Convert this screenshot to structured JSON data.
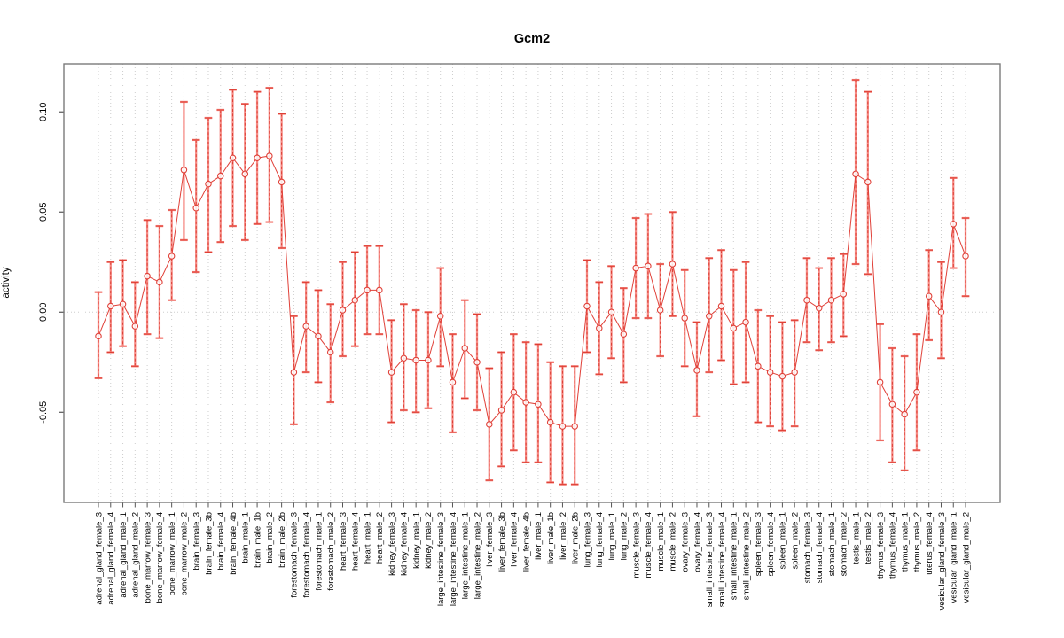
{
  "title": "Gcm2",
  "colors": {
    "point": "#e04038",
    "series_line": "#e04038",
    "errorbar_solid": "#f47068",
    "errorbar_dashed": "#d93025",
    "grid": "#cdcdcd",
    "frame": "#7a7a7a",
    "tick": "#555555",
    "text": "#000000",
    "background": "#ffffff"
  },
  "chart_data": {
    "type": "scatter",
    "title": "Gcm2",
    "xlabel": "",
    "ylabel": "activity",
    "ylim": [
      -0.095,
      0.124
    ],
    "yticks": [
      0.1,
      0.05,
      0.0,
      -0.05
    ],
    "ytick_labels": [
      "0.10",
      "0.05",
      "0.00",
      "-0.05"
    ],
    "grid": "vertical dotted gridline per category; dotted horizontal line at y=0",
    "legend": "none",
    "marker": "open-circle",
    "error_bars": true,
    "points": [
      {
        "label": "adrenal_gland_female_3",
        "value": -0.012,
        "lo": -0.033,
        "hi": 0.01
      },
      {
        "label": "adrenal_gland_female_4",
        "value": 0.003,
        "lo": -0.02,
        "hi": 0.025
      },
      {
        "label": "adrenal_gland_male_1",
        "value": 0.004,
        "lo": -0.017,
        "hi": 0.026
      },
      {
        "label": "adrenal_gland_male_2",
        "value": -0.007,
        "lo": -0.027,
        "hi": 0.015
      },
      {
        "label": "bone_marrow_female_3",
        "value": 0.018,
        "lo": -0.011,
        "hi": 0.046
      },
      {
        "label": "bone_marrow_female_4",
        "value": 0.015,
        "lo": -0.013,
        "hi": 0.043
      },
      {
        "label": "bone_marrow_male_1",
        "value": 0.028,
        "lo": 0.006,
        "hi": 0.051
      },
      {
        "label": "bone_marrow_male_2",
        "value": 0.071,
        "lo": 0.036,
        "hi": 0.105
      },
      {
        "label": "brain_female_3",
        "value": 0.052,
        "lo": 0.02,
        "hi": 0.086
      },
      {
        "label": "brain_female_3b",
        "value": 0.064,
        "lo": 0.03,
        "hi": 0.097
      },
      {
        "label": "brain_female_4",
        "value": 0.068,
        "lo": 0.035,
        "hi": 0.101
      },
      {
        "label": "brain_female_4b",
        "value": 0.077,
        "lo": 0.043,
        "hi": 0.111
      },
      {
        "label": "brain_male_1",
        "value": 0.069,
        "lo": 0.036,
        "hi": 0.104
      },
      {
        "label": "brain_male_1b",
        "value": 0.077,
        "lo": 0.044,
        "hi": 0.11
      },
      {
        "label": "brain_male_2",
        "value": 0.078,
        "lo": 0.045,
        "hi": 0.112
      },
      {
        "label": "brain_male_2b",
        "value": 0.065,
        "lo": 0.032,
        "hi": 0.099
      },
      {
        "label": "forestomach_female_3",
        "value": -0.03,
        "lo": -0.056,
        "hi": -0.002
      },
      {
        "label": "forestomach_female_4",
        "value": -0.007,
        "lo": -0.03,
        "hi": 0.015
      },
      {
        "label": "forestomach_male_1",
        "value": -0.012,
        "lo": -0.035,
        "hi": 0.011
      },
      {
        "label": "forestomach_male_2",
        "value": -0.02,
        "lo": -0.045,
        "hi": 0.004
      },
      {
        "label": "heart_female_3",
        "value": 0.001,
        "lo": -0.022,
        "hi": 0.025
      },
      {
        "label": "heart_female_4",
        "value": 0.006,
        "lo": -0.017,
        "hi": 0.03
      },
      {
        "label": "heart_male_1",
        "value": 0.011,
        "lo": -0.011,
        "hi": 0.033
      },
      {
        "label": "heart_male_2",
        "value": 0.011,
        "lo": -0.011,
        "hi": 0.033
      },
      {
        "label": "kidney_female_3",
        "value": -0.03,
        "lo": -0.055,
        "hi": -0.004
      },
      {
        "label": "kidney_female_4",
        "value": -0.023,
        "lo": -0.049,
        "hi": 0.004
      },
      {
        "label": "kidney_male_1",
        "value": -0.024,
        "lo": -0.05,
        "hi": 0.001
      },
      {
        "label": "kidney_male_2",
        "value": -0.024,
        "lo": -0.048,
        "hi": 0.0
      },
      {
        "label": "large_intestine_female_3",
        "value": -0.002,
        "lo": -0.027,
        "hi": 0.022
      },
      {
        "label": "large_intestine_female_4",
        "value": -0.035,
        "lo": -0.06,
        "hi": -0.011
      },
      {
        "label": "large_intestine_male_1",
        "value": -0.018,
        "lo": -0.043,
        "hi": 0.006
      },
      {
        "label": "large_intestine_male_2",
        "value": -0.025,
        "lo": -0.049,
        "hi": -0.001
      },
      {
        "label": "liver_female_3",
        "value": -0.056,
        "lo": -0.084,
        "hi": -0.028
      },
      {
        "label": "liver_female_3b",
        "value": -0.049,
        "lo": -0.077,
        "hi": -0.02
      },
      {
        "label": "liver_female_4",
        "value": -0.04,
        "lo": -0.069,
        "hi": -0.011
      },
      {
        "label": "liver_female_4b",
        "value": -0.045,
        "lo": -0.075,
        "hi": -0.015
      },
      {
        "label": "liver_male_1",
        "value": -0.046,
        "lo": -0.075,
        "hi": -0.016
      },
      {
        "label": "liver_male_1b",
        "value": -0.055,
        "lo": -0.085,
        "hi": -0.025
      },
      {
        "label": "liver_male_2",
        "value": -0.057,
        "lo": -0.086,
        "hi": -0.027
      },
      {
        "label": "liver_male_2b",
        "value": -0.057,
        "lo": -0.086,
        "hi": -0.027
      },
      {
        "label": "lung_female_3",
        "value": 0.003,
        "lo": -0.02,
        "hi": 0.026
      },
      {
        "label": "lung_female_4",
        "value": -0.008,
        "lo": -0.031,
        "hi": 0.015
      },
      {
        "label": "lung_male_1",
        "value": 0.0,
        "lo": -0.023,
        "hi": 0.023
      },
      {
        "label": "lung_male_2",
        "value": -0.011,
        "lo": -0.035,
        "hi": 0.012
      },
      {
        "label": "muscle_female_3",
        "value": 0.022,
        "lo": -0.003,
        "hi": 0.047
      },
      {
        "label": "muscle_female_4",
        "value": 0.023,
        "lo": -0.003,
        "hi": 0.049
      },
      {
        "label": "muscle_male_1",
        "value": 0.001,
        "lo": -0.022,
        "hi": 0.024
      },
      {
        "label": "muscle_male_2",
        "value": 0.024,
        "lo": -0.002,
        "hi": 0.05
      },
      {
        "label": "ovary_female_3",
        "value": -0.003,
        "lo": -0.027,
        "hi": 0.021
      },
      {
        "label": "ovary_female_4",
        "value": -0.029,
        "lo": -0.052,
        "hi": -0.005
      },
      {
        "label": "small_intestine_female_3",
        "value": -0.002,
        "lo": -0.03,
        "hi": 0.027
      },
      {
        "label": "small_intestine_female_4",
        "value": 0.003,
        "lo": -0.024,
        "hi": 0.031
      },
      {
        "label": "small_intestine_male_1",
        "value": -0.008,
        "lo": -0.036,
        "hi": 0.021
      },
      {
        "label": "small_intestine_male_2",
        "value": -0.005,
        "lo": -0.035,
        "hi": 0.025
      },
      {
        "label": "spleen_female_3",
        "value": -0.027,
        "lo": -0.055,
        "hi": 0.001
      },
      {
        "label": "spleen_female_4",
        "value": -0.03,
        "lo": -0.057,
        "hi": -0.002
      },
      {
        "label": "spleen_male_1",
        "value": -0.032,
        "lo": -0.059,
        "hi": -0.005
      },
      {
        "label": "spleen_male_2",
        "value": -0.03,
        "lo": -0.057,
        "hi": -0.004
      },
      {
        "label": "stomach_female_3",
        "value": 0.006,
        "lo": -0.015,
        "hi": 0.027
      },
      {
        "label": "stomach_female_4",
        "value": 0.002,
        "lo": -0.019,
        "hi": 0.022
      },
      {
        "label": "stomach_male_1",
        "value": 0.006,
        "lo": -0.015,
        "hi": 0.027
      },
      {
        "label": "stomach_male_2",
        "value": 0.009,
        "lo": -0.012,
        "hi": 0.029
      },
      {
        "label": "testis_male_1",
        "value": 0.069,
        "lo": 0.024,
        "hi": 0.116
      },
      {
        "label": "testis_male_2",
        "value": 0.065,
        "lo": 0.019,
        "hi": 0.11
      },
      {
        "label": "thymus_female_3",
        "value": -0.035,
        "lo": -0.064,
        "hi": -0.006
      },
      {
        "label": "thymus_female_4",
        "value": -0.046,
        "lo": -0.075,
        "hi": -0.018
      },
      {
        "label": "thymus_male_1",
        "value": -0.051,
        "lo": -0.079,
        "hi": -0.022
      },
      {
        "label": "thymus_male_2",
        "value": -0.04,
        "lo": -0.069,
        "hi": -0.011
      },
      {
        "label": "uterus_female_4",
        "value": 0.008,
        "lo": -0.014,
        "hi": 0.031
      },
      {
        "label": "vesicular_gland_female_3",
        "value": 0.0,
        "lo": -0.023,
        "hi": 0.025
      },
      {
        "label": "vesicular_gland_male_1",
        "value": 0.044,
        "lo": 0.022,
        "hi": 0.067
      },
      {
        "label": "vesicular_gland_male_2",
        "value": 0.028,
        "lo": 0.008,
        "hi": 0.047
      }
    ]
  }
}
